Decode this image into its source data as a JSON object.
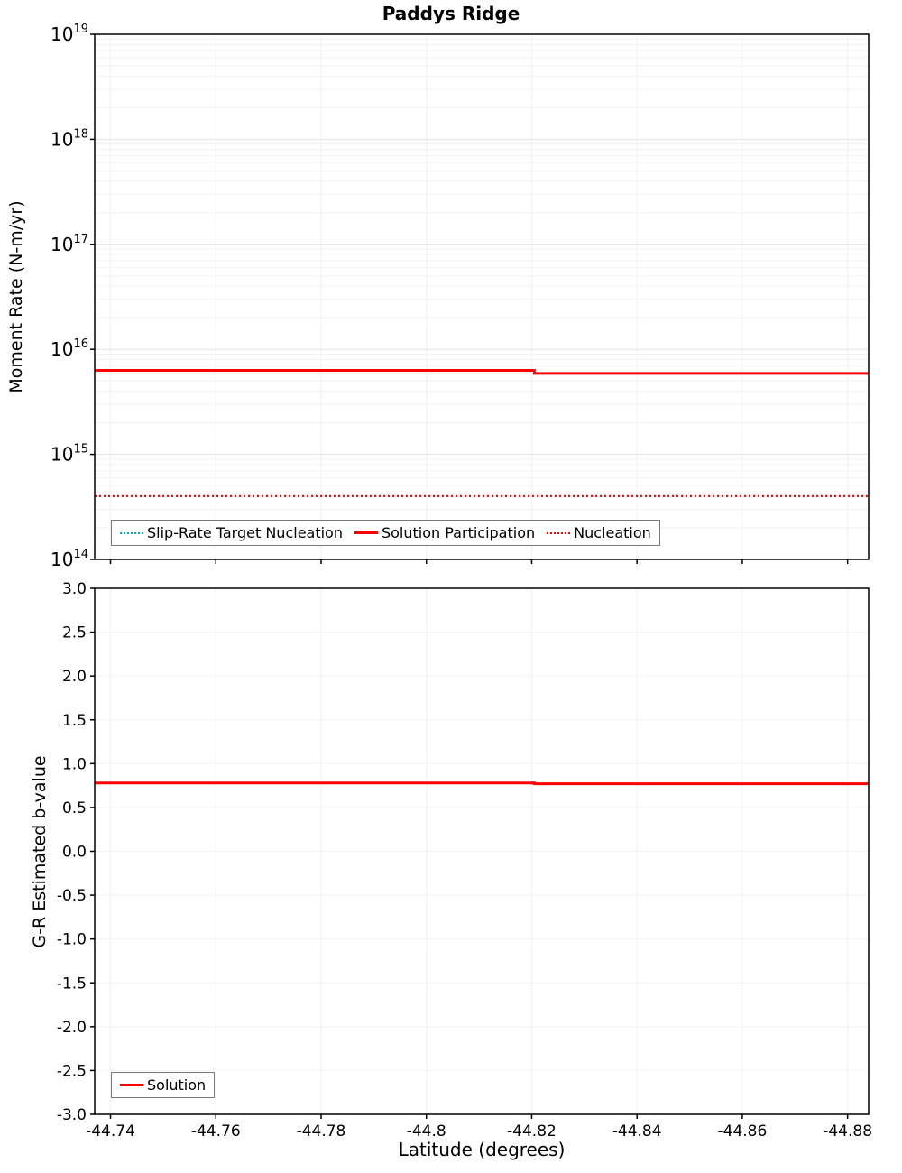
{
  "figure": {
    "background": "#ffffff",
    "axis_color": "#000000",
    "grid_major_color": "#e3e3e3",
    "grid_minor_color": "#f2f2f2"
  },
  "chart_data": [
    {
      "type": "line",
      "title": "Paddys Ridge",
      "ylabel": "Moment Rate (N-m/yr)",
      "yscale": "log",
      "ylim": [
        100000000000000.0,
        1e+19
      ],
      "y_tick_base": "10",
      "y_tick_exponents": [
        19,
        18,
        17,
        16,
        15,
        14
      ],
      "xlim": [
        -44.737,
        -44.884
      ],
      "x_tick_values": [
        -44.74,
        -44.76,
        -44.78,
        -44.8,
        -44.82,
        -44.84,
        -44.86,
        -44.88
      ],
      "x_tick_labels": [
        "-44.74",
        "-44.76",
        "-44.78",
        "-44.8",
        "-44.82",
        "-44.84",
        "-44.86",
        "-44.88"
      ],
      "show_x_tick_labels": false,
      "grid": true,
      "legend_position": "bottom-left",
      "series": [
        {
          "name": "Slip-Rate Target Nucleation",
          "color": "#00b2b2",
          "line_style": "dotted",
          "x": [
            -44.737,
            -44.884
          ],
          "y": [
            400000000000000.0,
            400000000000000.0
          ]
        },
        {
          "name": "Solution Participation",
          "color": "#ff0000",
          "line_style": "solid",
          "x": [
            -44.737,
            -44.8205,
            -44.8205,
            -44.884
          ],
          "y": [
            6300000000000000.0,
            6300000000000000.0,
            5900000000000000.0,
            5900000000000000.0
          ]
        },
        {
          "name": "Nucleation",
          "color": "#ff0000",
          "line_style": "dotted",
          "x": [
            -44.737,
            -44.884
          ],
          "y": [
            400000000000000.0,
            400000000000000.0
          ]
        }
      ]
    },
    {
      "type": "line",
      "ylabel": "G-R Estimated b-value",
      "xlabel": "Latitude (degrees)",
      "yscale": "linear",
      "ylim": [
        -3.0,
        3.0
      ],
      "y_tick_values": [
        3.0,
        2.5,
        2.0,
        1.5,
        1.0,
        0.5,
        0.0,
        -0.5,
        -1.0,
        -1.5,
        -2.0,
        -2.5,
        -3.0
      ],
      "y_tick_labels": [
        "3.0",
        "2.5",
        "2.0",
        "1.5",
        "1.0",
        "0.5",
        "0.0",
        "-0.5",
        "-1.0",
        "-1.5",
        "-2.0",
        "-2.5",
        "-3.0"
      ],
      "xlim": [
        -44.737,
        -44.884
      ],
      "x_tick_values": [
        -44.74,
        -44.76,
        -44.78,
        -44.8,
        -44.82,
        -44.84,
        -44.86,
        -44.88
      ],
      "x_tick_labels": [
        "-44.74",
        "-44.76",
        "-44.78",
        "-44.8",
        "-44.82",
        "-44.84",
        "-44.86",
        "-44.88"
      ],
      "show_x_tick_labels": true,
      "grid": true,
      "legend_position": "bottom-left",
      "series": [
        {
          "name": "Solution",
          "color": "#ff0000",
          "line_style": "solid",
          "x": [
            -44.737,
            -44.8205,
            -44.8205,
            -44.884
          ],
          "y": [
            0.78,
            0.78,
            0.77,
            0.77
          ]
        }
      ]
    }
  ]
}
